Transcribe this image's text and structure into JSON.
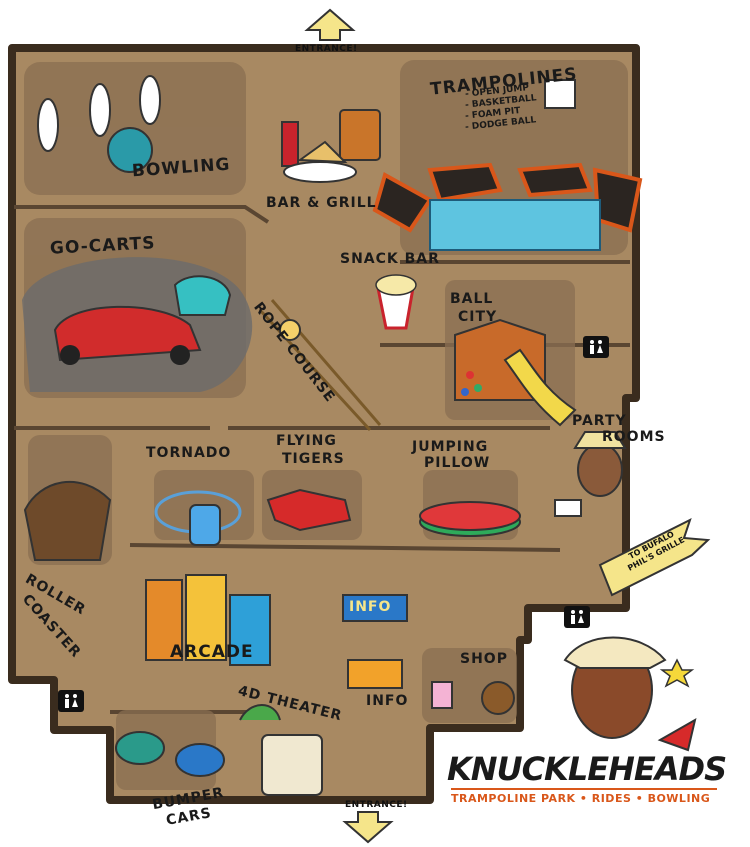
{
  "entrances": {
    "top": "ENTRANCE!",
    "bottom": "ENTRANCE!"
  },
  "zones": {
    "bowling": "BOWLING",
    "bar_grill": "BAR & GRILL",
    "trampolines": "TRAMPOLINES",
    "trampoline_features": [
      "- OPEN JUMP",
      "- BASKETBALL",
      "- FOAM PIT",
      "- DODGE BALL"
    ],
    "go_carts": "GO-CARTS",
    "snack_bar": "SNACK BAR",
    "rope_course": "ROPE COURSE",
    "ball_city_1": "BALL",
    "ball_city_2": "CITY",
    "party_rooms_1": "PARTY",
    "party_rooms_2": "ROOMS",
    "tornado": "TORNADO",
    "flying_tigers_1": "FLYING",
    "flying_tigers_2": "TIGERS",
    "jumping_pillow_1": "JUMPING",
    "jumping_pillow_2": "PILLOW",
    "roller_coaster_1": "ROLLER",
    "roller_coaster_2": "COASTER",
    "arcade": "ARCADE",
    "info_sign": "INFO",
    "info": "INFO",
    "shop": "SHOP",
    "theater": "4D THEATER",
    "bumper_cars_1": "BUMPER",
    "bumper_cars_2": "CARS"
  },
  "sign": {
    "line1": "TO BUFALO",
    "line2": "PHIL'S GRILLE"
  },
  "brand": {
    "name": "KNUCKLEHEADS",
    "tagline": "TRAMPOLINE PARK • RIDES • BOWLING"
  },
  "colors": {
    "floor": "#a88962",
    "wall": "#4a3a2a",
    "zone": "#8a6f52",
    "accent": "#d9571a"
  }
}
